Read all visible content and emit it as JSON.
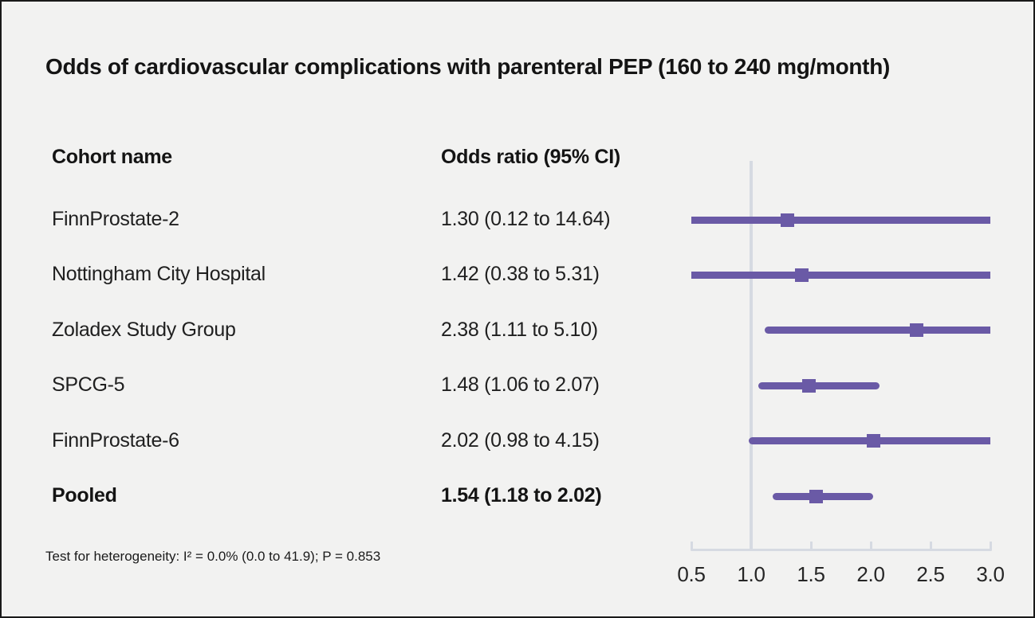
{
  "title": "Odds of cardiovascular complications with parenteral PEP (160 to 240 mg/month)",
  "columns": {
    "cohort": "Cohort name",
    "odds": "Odds ratio (95% CI)"
  },
  "footnote": "Test for heterogeneity: I² = 0.0% (0.0 to 41.9); P = 0.853",
  "colors": {
    "accent": "#6a5aa6",
    "axis": "#d6dae2",
    "background": "#f2f2f1",
    "text": "#1a1a1a"
  },
  "chart_data": {
    "type": "forest",
    "title": "Odds of cardiovascular complications with parenteral PEP (160 to 240 mg/month)",
    "xlabel": "",
    "ylabel": "",
    "xlim": [
      0.5,
      3.0
    ],
    "reference_line": 1.0,
    "x_ticks": [
      0.5,
      1.0,
      1.5,
      2.0,
      2.5,
      3.0
    ],
    "x_tick_labels": [
      "0.5",
      "1.0",
      "1.5",
      "2.0",
      "2.5",
      "3.0"
    ],
    "grid": false,
    "legend": false,
    "rows": [
      {
        "label": "FinnProstate-2",
        "display": "1.30 (0.12 to 14.64)",
        "estimate": 1.3,
        "ci_low": 0.12,
        "ci_high": 14.64,
        "bold": false
      },
      {
        "label": "Nottingham City Hospital",
        "display": "1.42 (0.38 to 5.31)",
        "estimate": 1.42,
        "ci_low": 0.38,
        "ci_high": 5.31,
        "bold": false
      },
      {
        "label": "Zoladex Study Group",
        "display": "2.38 (1.11 to 5.10)",
        "estimate": 2.38,
        "ci_low": 1.11,
        "ci_high": 5.1,
        "bold": false
      },
      {
        "label": "SPCG-5",
        "display": "1.48 (1.06 to 2.07)",
        "estimate": 1.48,
        "ci_low": 1.06,
        "ci_high": 2.07,
        "bold": false
      },
      {
        "label": "FinnProstate-6",
        "display": "2.02 (0.98 to 4.15)",
        "estimate": 2.02,
        "ci_low": 0.98,
        "ci_high": 4.15,
        "bold": false
      },
      {
        "label": "Pooled",
        "display": "1.54 (1.18 to 2.02)",
        "estimate": 1.54,
        "ci_low": 1.18,
        "ci_high": 2.02,
        "bold": true
      }
    ]
  }
}
